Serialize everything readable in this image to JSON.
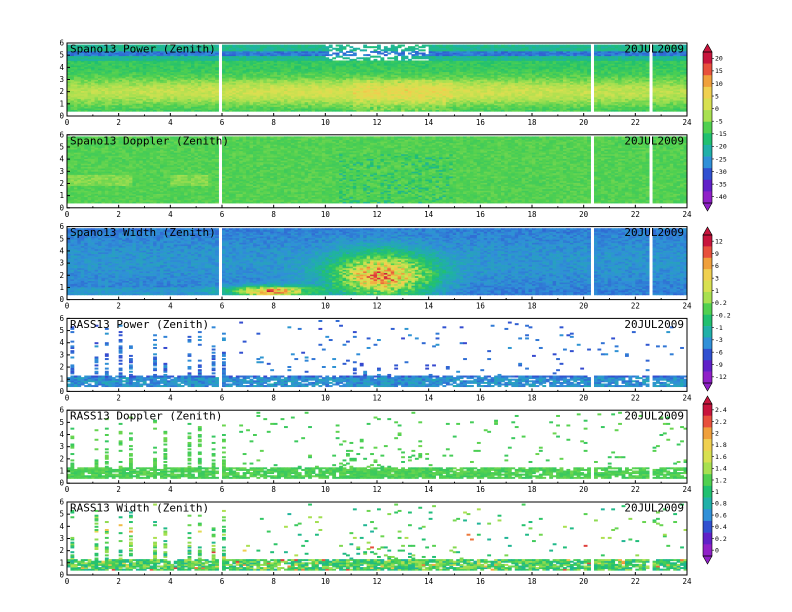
{
  "chart_data": [
    {
      "type": "heatmap",
      "title": "Spano13 Power (Zenith)",
      "date": "20JUL2009",
      "xlim": [
        0,
        24
      ],
      "ylim": [
        0,
        6
      ],
      "x_ticks": [
        "0",
        "2",
        "4",
        "6",
        "8",
        "10",
        "12",
        "14",
        "16",
        "18",
        "20",
        "22",
        "24"
      ],
      "y_ticks": [
        "0",
        "1",
        "2",
        "3",
        "4",
        "5",
        "6"
      ],
      "colorbar_id": "power"
    },
    {
      "type": "heatmap",
      "title": "Spano13 Doppler (Zenith)",
      "date": "20JUL2009",
      "xlim": [
        0,
        24
      ],
      "ylim": [
        0,
        6
      ],
      "x_ticks": [
        "0",
        "2",
        "4",
        "6",
        "8",
        "10",
        "12",
        "14",
        "16",
        "18",
        "20",
        "22",
        "24"
      ],
      "y_ticks": [
        "0",
        "1",
        "2",
        "3",
        "4",
        "5",
        "6"
      ],
      "colorbar_id": "power"
    },
    {
      "type": "heatmap",
      "title": "Spano13 Width (Zenith)",
      "date": "20JUL2009",
      "xlim": [
        0,
        24
      ],
      "ylim": [
        0,
        6
      ],
      "x_ticks": [
        "0",
        "2",
        "4",
        "6",
        "8",
        "10",
        "12",
        "14",
        "16",
        "18",
        "20",
        "22",
        "24"
      ],
      "y_ticks": [
        "0",
        "1",
        "2",
        "3",
        "4",
        "5",
        "6"
      ],
      "colorbar_id": "doppler"
    },
    {
      "type": "heatmap",
      "title": "RASS13 Power (Zenith)",
      "date": "20JUL2009",
      "xlim": [
        0,
        24
      ],
      "ylim": [
        0,
        6
      ],
      "x_ticks": [
        "0",
        "2",
        "4",
        "6",
        "8",
        "10",
        "12",
        "14",
        "16",
        "18",
        "20",
        "22",
        "24"
      ],
      "y_ticks": [
        "0",
        "1",
        "2",
        "3",
        "4",
        "5",
        "6"
      ],
      "colorbar_id": "doppler"
    },
    {
      "type": "heatmap",
      "title": "RASS13 Doppler (Zenith)",
      "date": "20JUL2009",
      "xlim": [
        0,
        24
      ],
      "ylim": [
        0,
        6
      ],
      "x_ticks": [
        "0",
        "2",
        "4",
        "6",
        "8",
        "10",
        "12",
        "14",
        "16",
        "18",
        "20",
        "22",
        "24"
      ],
      "y_ticks": [
        "0",
        "1",
        "2",
        "3",
        "4",
        "5",
        "6"
      ],
      "colorbar_id": "width"
    },
    {
      "type": "heatmap",
      "title": "RASS13 Width (Zenith)",
      "date": "20JUL2009",
      "xlim": [
        0,
        24
      ],
      "ylim": [
        0,
        6
      ],
      "x_ticks": [
        "0",
        "2",
        "4",
        "6",
        "8",
        "10",
        "12",
        "14",
        "16",
        "18",
        "20",
        "22",
        "24"
      ],
      "y_ticks": [
        "0",
        "1",
        "2",
        "3",
        "4",
        "5",
        "6"
      ],
      "colorbar_id": "width"
    }
  ],
  "colorbars": [
    {
      "id": "power",
      "labels": [
        "20",
        "15",
        "10",
        "5",
        "0",
        "-5",
        "-15",
        "-20",
        "-25",
        "-30",
        "-35",
        "-40"
      ],
      "colors": [
        "#c8143c",
        "#e8503c",
        "#f0a03c",
        "#f0d050",
        "#d8e050",
        "#a8e050",
        "#50d050",
        "#20c070",
        "#20b0a8",
        "#3090d8",
        "#3050d0",
        "#6020c8",
        "#9020c8"
      ]
    },
    {
      "id": "doppler",
      "labels": [
        "12",
        "9",
        "6",
        "3",
        "1",
        "0.2",
        "-0.2",
        "-1",
        "-3",
        "-6",
        "-9",
        "-12"
      ],
      "colors": [
        "#c8143c",
        "#e8503c",
        "#f0a03c",
        "#f0d050",
        "#d8e050",
        "#a8e050",
        "#50d050",
        "#20c070",
        "#20b0a8",
        "#3090d8",
        "#3050d0",
        "#6020c8",
        "#9020c8"
      ]
    },
    {
      "id": "width",
      "labels": [
        "2.4",
        "2.2",
        "2",
        "1.8",
        "1.6",
        "1.4",
        "1.2",
        "1",
        "0.8",
        "0.6",
        "0.4",
        "0.2",
        "0"
      ],
      "colors": [
        "#c8143c",
        "#e8503c",
        "#f0a03c",
        "#f0d050",
        "#d8e050",
        "#a8e050",
        "#50d050",
        "#20c070",
        "#20b0a8",
        "#3090d8",
        "#3050d0",
        "#6020c8",
        "#9020c8"
      ]
    }
  ],
  "colors": {
    "frame": "#000000",
    "background": "#ffffff",
    "gap": "#ffffff"
  }
}
